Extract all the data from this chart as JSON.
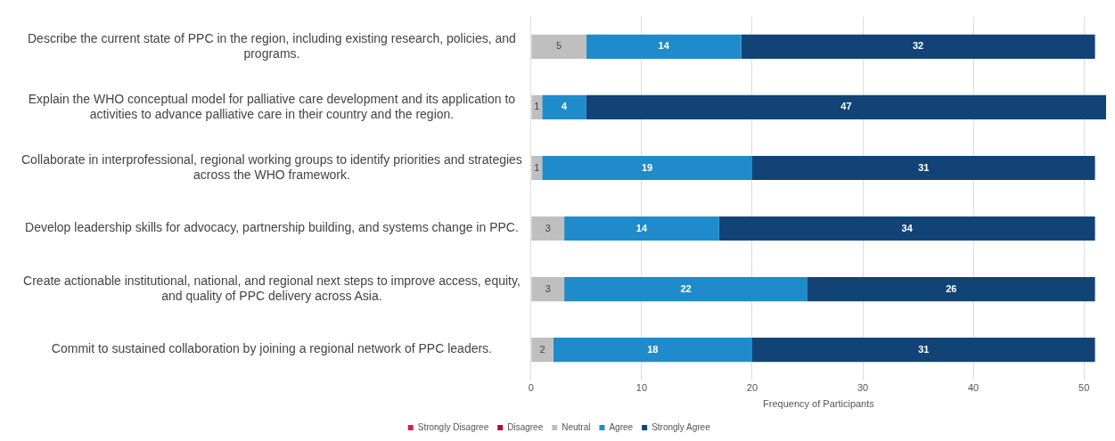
{
  "chart_data": {
    "type": "bar",
    "orientation": "horizontal",
    "stacked": true,
    "xlabel": "Frequency of Participants",
    "categories": [
      "Describe the current state of PPC in the region, including existing research, policies, and programs.",
      "Explain the WHO conceptual model for palliative care development and its application to activities to advance palliative care in their country and the region.",
      "Collaborate in interprofessional, regional working groups to identify priorities and strategies across the WHO framework.",
      "Develop leadership skills for advocacy, partnership building, and systems change in PPC.",
      "Create actionable institutional, national, and regional next steps to improve access, equity, and quality of PPC delivery across Asia.",
      "Commit to sustained collaboration by joining a regional network of PPC leaders."
    ],
    "series": [
      {
        "name": "Strongly Disagree",
        "color": "#d6204e",
        "values": [
          0,
          0,
          0,
          0,
          0,
          0
        ],
        "value_labels": [
          null,
          null,
          null,
          null,
          null,
          null
        ]
      },
      {
        "name": "Disagree",
        "color": "#a3133d",
        "values": [
          0,
          0,
          0,
          0,
          0,
          0
        ],
        "value_labels": [
          null,
          null,
          null,
          null,
          null,
          null
        ]
      },
      {
        "name": "Neutral",
        "color": "#bfbfbf",
        "values": [
          5,
          1,
          1,
          3,
          3,
          2
        ],
        "value_labels": [
          "5",
          "1",
          "1",
          "3",
          "3",
          "2"
        ]
      },
      {
        "name": "Agree",
        "color": "#208bcb",
        "values": [
          14,
          4,
          19,
          14,
          22,
          18
        ],
        "value_labels": [
          "14",
          "4",
          "19",
          "14",
          "22",
          "18"
        ]
      },
      {
        "name": "Strongly Agree",
        "color": "#124377",
        "values": [
          32,
          47,
          31,
          34,
          26,
          31
        ],
        "value_labels": [
          "32",
          "47",
          "31",
          "34",
          "26",
          "31"
        ]
      }
    ],
    "xlim": [
      0,
      52
    ],
    "xticks": [
      0,
      10,
      20,
      30,
      40,
      50
    ],
    "grid": "x",
    "legend": "bottom"
  }
}
